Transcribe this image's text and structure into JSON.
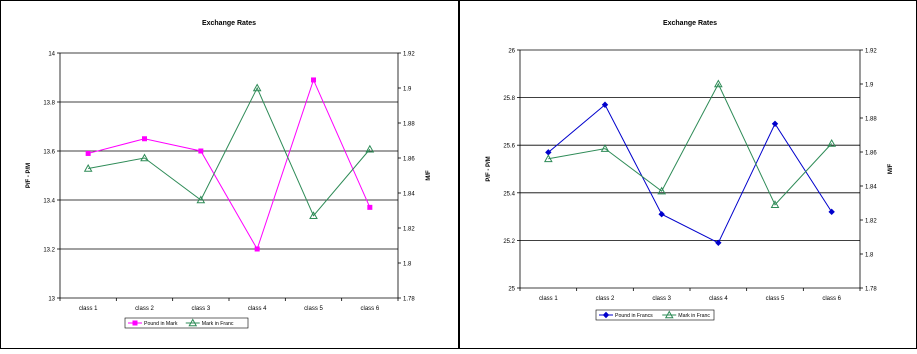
{
  "chart_data": [
    {
      "type": "line",
      "title": "Exchange Rates",
      "categories": [
        "class 1",
        "class 2",
        "class 3",
        "class 4",
        "class 5",
        "class 6"
      ],
      "ylabel_left": "P/F - P/M",
      "ylabel_right": "M/F",
      "ylim_left": [
        13,
        14
      ],
      "yticks_left": [
        "13",
        "13.2",
        "13.4",
        "13.6",
        "13.8",
        "14"
      ],
      "ylim_right": [
        1.78,
        1.92
      ],
      "yticks_right": [
        "1.78",
        "1.8",
        "1.82",
        "1.84",
        "1.86",
        "1.88",
        "1.9",
        "1.92"
      ],
      "grid": "horizontal",
      "legend_position": "bottom",
      "series": [
        {
          "name": "Pound in Mark",
          "axis": "left",
          "color": "#ff00ff",
          "marker": "square",
          "values": [
            13.59,
            13.65,
            13.6,
            13.2,
            13.89,
            13.37
          ]
        },
        {
          "name": "Mark in Franc",
          "axis": "right",
          "color": "#2e8b57",
          "marker": "triangle",
          "values": [
            1.854,
            1.86,
            1.836,
            1.9,
            1.827,
            1.865
          ]
        }
      ]
    },
    {
      "type": "line",
      "title": "Exchange Rates",
      "categories": [
        "class 1",
        "class 2",
        "class 3",
        "class 4",
        "class 5",
        "class 6"
      ],
      "ylabel_left": "P/F - P/M",
      "ylabel_right": "M/F",
      "ylim_left": [
        25,
        26
      ],
      "yticks_left": [
        "25",
        "25.2",
        "25.4",
        "25.6",
        "25.8",
        "26"
      ],
      "ylim_right": [
        1.78,
        1.92
      ],
      "yticks_right": [
        "1.78",
        "1.8",
        "1.82",
        "1.84",
        "1.86",
        "1.88",
        "1.9",
        "1.92"
      ],
      "grid": "horizontal",
      "legend_position": "bottom",
      "series": [
        {
          "name": "Pound in Francs",
          "axis": "left",
          "color": "#0000cc",
          "marker": "diamond",
          "values": [
            25.57,
            25.77,
            25.31,
            25.19,
            25.69,
            25.32
          ]
        },
        {
          "name": "Mark in Franc",
          "axis": "right",
          "color": "#2e8b57",
          "marker": "triangle",
          "values": [
            1.856,
            1.862,
            1.837,
            1.9,
            1.829,
            1.865
          ]
        }
      ]
    }
  ]
}
